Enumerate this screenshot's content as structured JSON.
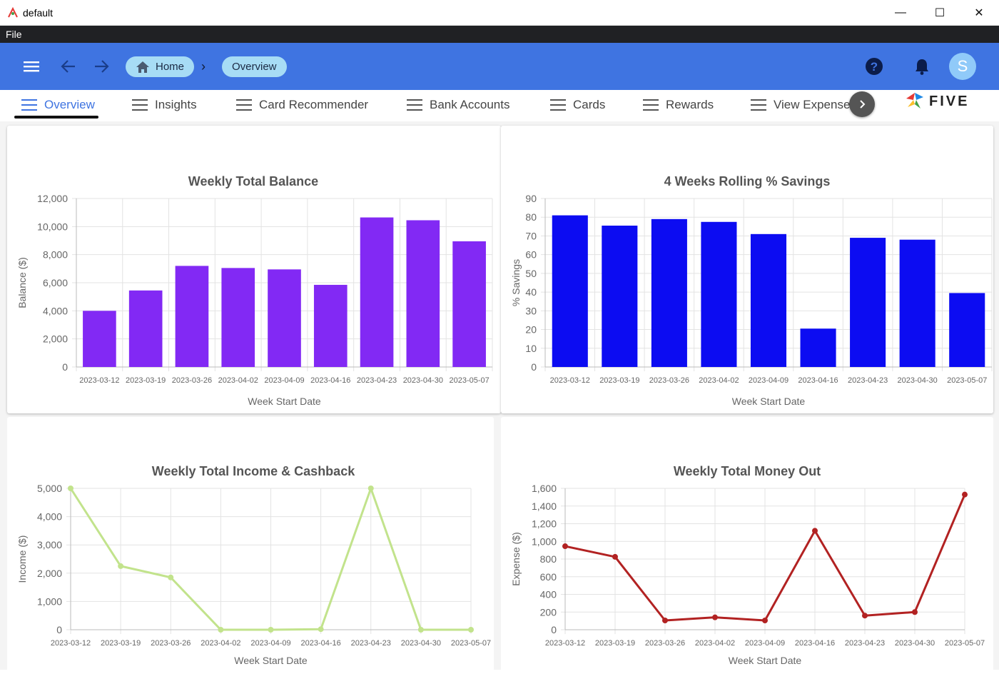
{
  "window": {
    "title": "default",
    "controls": {
      "minimize": "—",
      "maximize": "☐",
      "close": "✕"
    }
  },
  "menubar": {
    "file": "File"
  },
  "header": {
    "breadcrumbs": [
      {
        "label": "Home"
      },
      {
        "label": "Overview"
      }
    ],
    "avatar_initial": "S",
    "help": "?"
  },
  "tabs": [
    {
      "label": "Overview",
      "active": true
    },
    {
      "label": "Insights"
    },
    {
      "label": "Card Recommender"
    },
    {
      "label": "Bank Accounts"
    },
    {
      "label": "Cards"
    },
    {
      "label": "Rewards"
    },
    {
      "label": "View Expenses"
    }
  ],
  "brand": {
    "logo_text": "FIVE"
  },
  "colors": {
    "appbar": "#3f74e1",
    "balance": "#8229f4",
    "savings": "#0c0cf2",
    "income": "#c2e38c",
    "expense": "#b22222"
  },
  "chart_data": [
    {
      "type": "bar",
      "title": "Weekly Total Balance",
      "xlabel": "Week Start Date",
      "ylabel": "Balance ($)",
      "ylim": [
        0,
        12000
      ],
      "yticks": [
        "0",
        "2,000",
        "4,000",
        "6,000",
        "8,000",
        "10,000",
        "12,000"
      ],
      "categories": [
        "2023-03-12",
        "2023-03-19",
        "2023-03-26",
        "2023-04-02",
        "2023-04-09",
        "2023-04-16",
        "2023-04-23",
        "2023-04-30",
        "2023-05-07"
      ],
      "values": [
        4000,
        5450,
        7200,
        7050,
        6950,
        5850,
        10650,
        10450,
        8950
      ],
      "grid": true
    },
    {
      "type": "bar",
      "title": "4 Weeks Rolling % Savings",
      "xlabel": "Week Start Date",
      "ylabel": "% Savings",
      "ylim": [
        0,
        90
      ],
      "yticks": [
        "0",
        "10",
        "20",
        "30",
        "40",
        "50",
        "60",
        "70",
        "80",
        "90"
      ],
      "categories": [
        "2023-03-12",
        "2023-03-19",
        "2023-03-26",
        "2023-04-02",
        "2023-04-09",
        "2023-04-16",
        "2023-04-23",
        "2023-04-30",
        "2023-05-07"
      ],
      "values": [
        81,
        75.5,
        79,
        77.5,
        71,
        20.5,
        69,
        68,
        39.5
      ],
      "grid": true
    },
    {
      "type": "line",
      "title": "Weekly Total Income & Cashback",
      "xlabel": "Week Start Date",
      "ylabel": "Income ($)",
      "ylim": [
        0,
        5000
      ],
      "yticks": [
        "0",
        "1,000",
        "2,000",
        "3,000",
        "4,000",
        "5,000"
      ],
      "categories": [
        "2023-03-12",
        "2023-03-19",
        "2023-03-26",
        "2023-04-02",
        "2023-04-09",
        "2023-04-16",
        "2023-04-23",
        "2023-04-30",
        "2023-05-07"
      ],
      "values": [
        5000,
        2250,
        1850,
        0,
        0,
        20,
        5000,
        0,
        0
      ],
      "grid": true
    },
    {
      "type": "line",
      "title": "Weekly Total Money Out",
      "xlabel": "Week Start Date",
      "ylabel": "Expense ($)",
      "ylim": [
        0,
        1600
      ],
      "yticks": [
        "0",
        "200",
        "400",
        "600",
        "800",
        "1,000",
        "1,200",
        "1,400",
        "1,600"
      ],
      "categories": [
        "2023-03-12",
        "2023-03-19",
        "2023-03-26",
        "2023-04-02",
        "2023-04-09",
        "2023-04-16",
        "2023-04-23",
        "2023-04-30",
        "2023-05-07"
      ],
      "values": [
        945,
        825,
        105,
        140,
        105,
        1120,
        160,
        200,
        1530
      ],
      "grid": true
    }
  ]
}
